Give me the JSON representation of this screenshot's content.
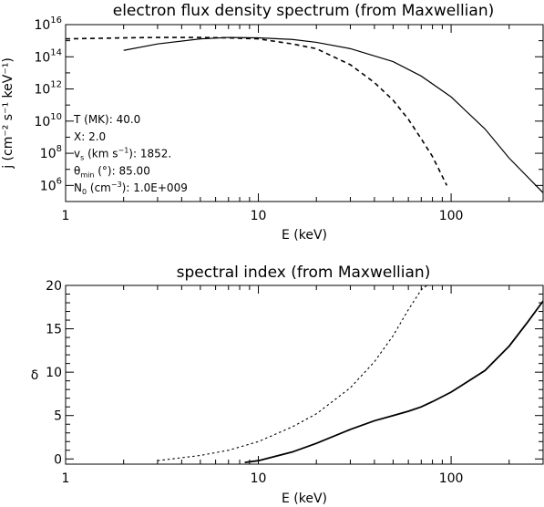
{
  "chart_data": [
    {
      "type": "line",
      "title": "electron flux density spectrum (from Maxwellian)",
      "xlabel": "E (keV)",
      "ylabel": "j (cm⁻² s⁻¹ keV⁻¹)",
      "xscale": "log",
      "yscale": "log",
      "xlim": [
        1,
        300
      ],
      "ylim": [
        100000,
        10000000000000000
      ],
      "xticks": [
        {
          "v": 1,
          "label": "1"
        },
        {
          "v": 10,
          "label": "10"
        },
        {
          "v": 100,
          "label": "100"
        }
      ],
      "yticks": [
        {
          "v": 1000000,
          "base": "10",
          "exp": "6"
        },
        {
          "v": 100000000,
          "base": "10",
          "exp": "8"
        },
        {
          "v": 10000000000,
          "base": "10",
          "exp": "10"
        },
        {
          "v": 1000000000000,
          "base": "10",
          "exp": "12"
        },
        {
          "v": 100000000000000,
          "base": "10",
          "exp": "14"
        },
        {
          "v": 10000000000000000,
          "base": "10",
          "exp": "16"
        }
      ],
      "grid": false,
      "series": [
        {
          "style": "solid",
          "x": [
            2.0,
            3.0,
            5.0,
            7.0,
            10.0,
            15.0,
            20.0,
            30.0,
            50.0,
            70.0,
            100.0,
            150.0,
            200.0,
            300.0
          ],
          "y": [
            250000000000000.0,
            630000000000000.0,
            1300000000000000.0,
            1600000000000000.0,
            1500000000000000.0,
            1200000000000000.0,
            790000000000000.0,
            320000000000000.0,
            50000000000000.0,
            6300000000000.0,
            320000000000.0,
            3200000000.0,
            50000000.0,
            350000.0
          ]
        },
        {
          "style": "dashed",
          "x": [
            1.0,
            2.0,
            3.0,
            5.0,
            7.0,
            10.0,
            15.0,
            20.0,
            30.0,
            40.0,
            50.0,
            60.0,
            70.0,
            80.0,
            95.0
          ],
          "y": [
            1300000000000000.0,
            1500000000000000.0,
            1600000000000000.0,
            1600000000000000.0,
            1500000000000000.0,
            1300000000000000.0,
            630000000000000.0,
            320000000000000.0,
            32000000000000.0,
            2500000000000.0,
            200000000000.0,
            13000000000.0,
            790000000.0,
            63000000.0,
            1000000.0
          ]
        }
      ],
      "annotations": [
        {
          "main": "T (MK): 40.0"
        },
        {
          "main": "X: 2.0"
        },
        {
          "pre": "v",
          "sub": "s",
          "mid": " (km s",
          "sup": "−1",
          "post": "): 1852."
        },
        {
          "pre": "θ",
          "sub": "min",
          "mid": " (°): 85.00",
          "sup": "",
          "post": ""
        },
        {
          "pre": "N",
          "sub": "0",
          "mid": " (cm",
          "sup": "−3",
          "post": "): 1.0E+009"
        }
      ]
    },
    {
      "type": "line",
      "title": "spectral index (from Maxwellian)",
      "xlabel": "E (keV)",
      "ylabel": "δ",
      "xscale": "log",
      "yscale": "linear",
      "xlim": [
        1,
        300
      ],
      "ylim": [
        -0.6,
        20
      ],
      "xticks": [
        {
          "v": 1,
          "label": "1"
        },
        {
          "v": 10,
          "label": "10"
        },
        {
          "v": 100,
          "label": "100"
        }
      ],
      "yticks": [
        {
          "v": 0,
          "label": "0"
        },
        {
          "v": 5,
          "label": "5"
        },
        {
          "v": 10,
          "label": "10"
        },
        {
          "v": 15,
          "label": "15"
        },
        {
          "v": 20,
          "label": "20"
        }
      ],
      "grid": false,
      "series": [
        {
          "style": "solid",
          "x": [
            8.5,
            10.0,
            15.0,
            20.0,
            30.0,
            40.0,
            50.0,
            60.0,
            70.0,
            80.0,
            100.0,
            150.0,
            200.0,
            250.0,
            300.0
          ],
          "y": [
            -0.4,
            -0.2,
            0.8,
            1.8,
            3.4,
            4.4,
            5.0,
            5.5,
            6.0,
            6.6,
            7.7,
            10.2,
            13.0,
            15.8,
            18.2
          ]
        },
        {
          "style": "dotted",
          "x": [
            3.0,
            5.0,
            7.0,
            10.0,
            15.0,
            20.0,
            30.0,
            40.0,
            50.0,
            60.0,
            70.0,
            75.0
          ],
          "y": [
            -0.2,
            0.4,
            1.0,
            2.0,
            3.7,
            5.2,
            8.2,
            11.2,
            14.2,
            17.2,
            19.5,
            20.0
          ]
        }
      ],
      "annotations": []
    }
  ]
}
